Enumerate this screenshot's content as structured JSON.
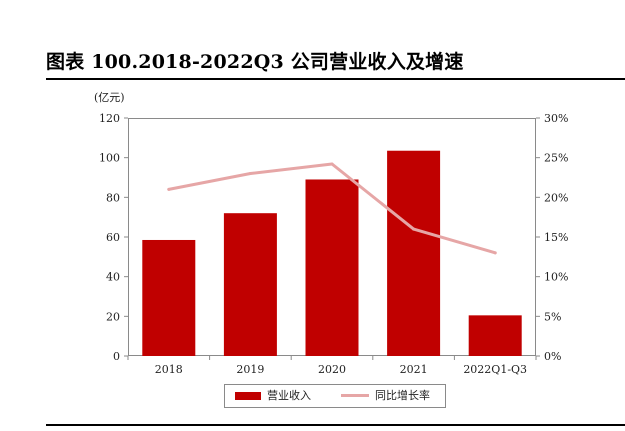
{
  "page": {
    "title": "图表 100.2018-2022Q3 公司营业收入及增速"
  },
  "chart_data": {
    "type": "bar",
    "categories": [
      "2018",
      "2019",
      "2020",
      "2021",
      "2022Q1-Q3"
    ],
    "series": [
      {
        "name": "营业收入",
        "type": "bar",
        "axis": "left",
        "color": "#c00000",
        "values": [
          58.5,
          72,
          89,
          103.5,
          20.5
        ]
      },
      {
        "name": "同比增长率",
        "type": "line",
        "axis": "right",
        "color": "#e6a6a6",
        "values": [
          21,
          23,
          24.2,
          16,
          13
        ]
      }
    ],
    "y_left": {
      "unit_label": "(亿元)",
      "range": [
        0,
        120
      ],
      "ticks": [
        0,
        20,
        40,
        60,
        80,
        100,
        120
      ],
      "tick_labels": [
        "0",
        "20",
        "40",
        "60",
        "80",
        "100",
        "120"
      ]
    },
    "y_right": {
      "range": [
        0,
        30
      ],
      "ticks": [
        0,
        5,
        10,
        15,
        20,
        25,
        30
      ],
      "tick_labels": [
        "0%",
        "5%",
        "10%",
        "15%",
        "20%",
        "25%",
        "30%"
      ]
    },
    "grid": false,
    "legend_position": "bottom"
  }
}
